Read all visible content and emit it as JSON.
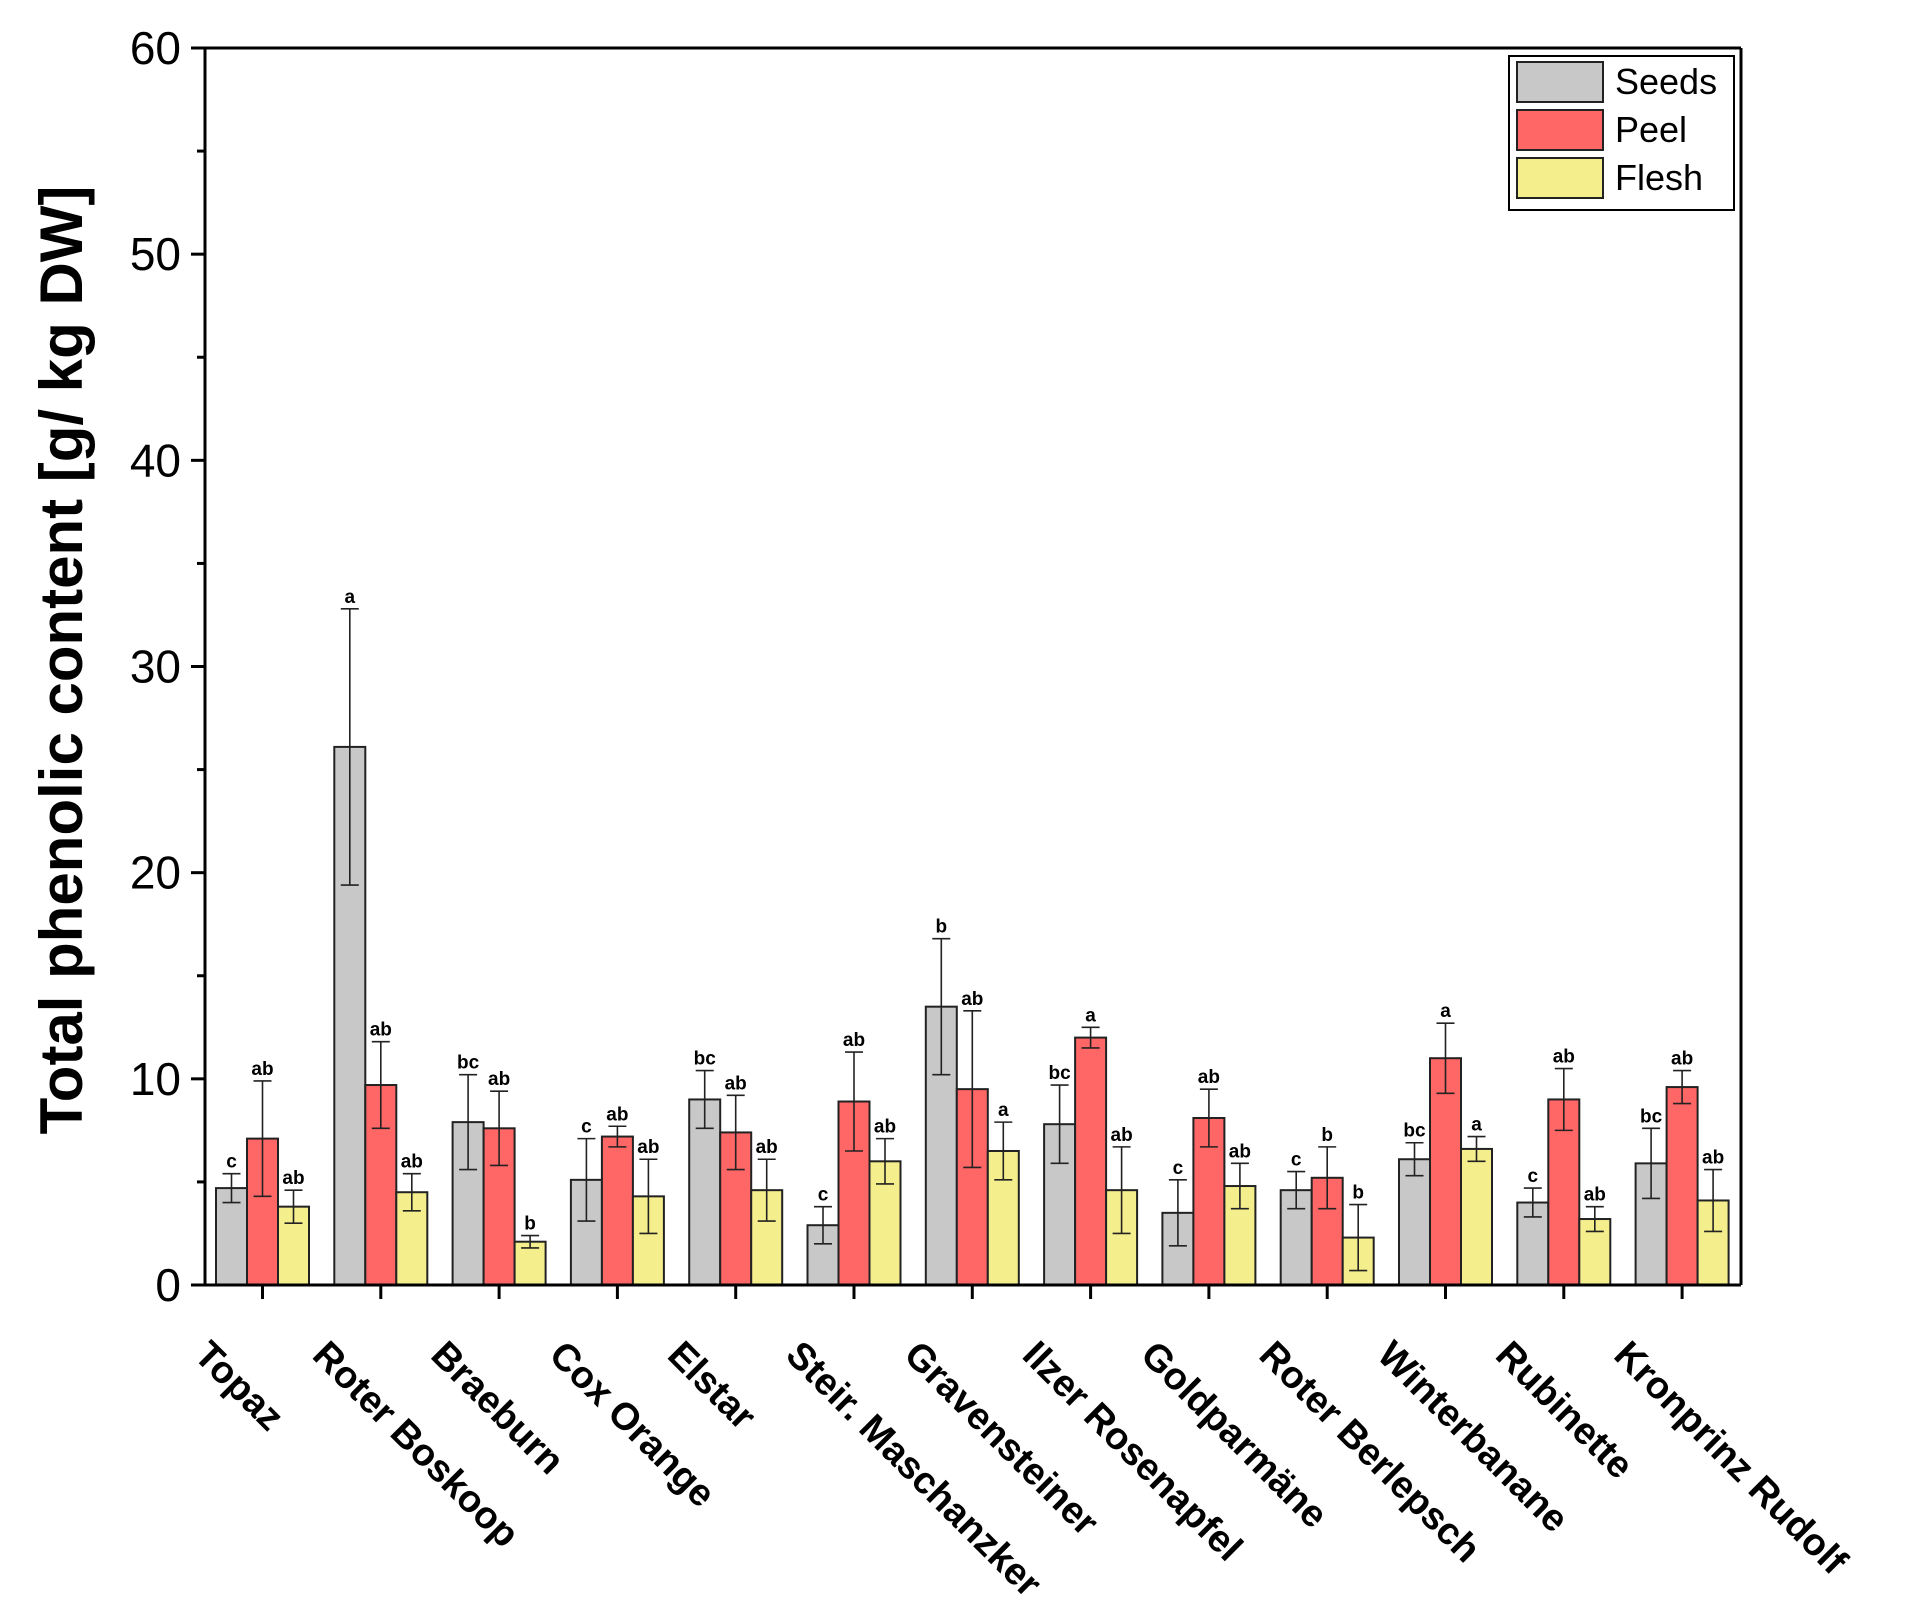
{
  "chart_data": {
    "type": "bar",
    "title": "",
    "xlabel": "",
    "ylabel": "Total phenolic content  [g/ kg DW]",
    "ylim": [
      0,
      60
    ],
    "yticks": [
      "0",
      "10",
      "20",
      "30",
      "40",
      "50",
      "60"
    ],
    "legend_position": "top-right",
    "categories": [
      "Topaz",
      "Roter Boskoop",
      "Braeburn",
      "Cox Orange",
      "Elstar",
      "Steir. Maschanzker",
      "Gravensteiner",
      "Ilzer Rosenapfel",
      "Goldparmäne",
      "Roter Berlepsch",
      "Winterbanane",
      "Rubinette",
      "Kronprinz Rudolf"
    ],
    "series": [
      {
        "name": "Seeds",
        "color": "#c8c8c8",
        "values": [
          4.7,
          26.1,
          7.9,
          5.1,
          9.0,
          2.9,
          13.5,
          7.8,
          3.5,
          4.6,
          6.1,
          4.0,
          5.9
        ],
        "errors": [
          0.7,
          6.7,
          2.3,
          2.0,
          1.4,
          0.9,
          3.3,
          1.9,
          1.6,
          0.9,
          0.8,
          0.7,
          1.7
        ],
        "letters": [
          "c",
          "a",
          "bc",
          "c",
          "bc",
          "c",
          "b",
          "bc",
          "c",
          "c",
          "bc",
          "c",
          "bc"
        ]
      },
      {
        "name": "Peel",
        "color": "#ff6666",
        "values": [
          7.1,
          9.7,
          7.6,
          7.2,
          7.4,
          8.9,
          9.5,
          12.0,
          8.1,
          5.2,
          11.0,
          9.0,
          9.6
        ],
        "errors": [
          2.8,
          2.1,
          1.8,
          0.5,
          1.8,
          2.4,
          3.8,
          0.5,
          1.4,
          1.5,
          1.7,
          1.5,
          0.8
        ],
        "letters": [
          "ab",
          "ab",
          "ab",
          "ab",
          "ab",
          "ab",
          "ab",
          "a",
          "ab",
          "b",
          "a",
          "ab",
          "ab"
        ]
      },
      {
        "name": "Flesh",
        "color": "#f5ee8c",
        "values": [
          3.8,
          4.5,
          2.1,
          4.3,
          4.6,
          6.0,
          6.5,
          4.6,
          4.8,
          2.3,
          6.6,
          3.2,
          4.1
        ],
        "errors": [
          0.8,
          0.9,
          0.3,
          1.8,
          1.5,
          1.1,
          1.4,
          2.1,
          1.1,
          1.6,
          0.6,
          0.6,
          1.5
        ],
        "letters": [
          "ab",
          "ab",
          "b",
          "ab",
          "ab",
          "ab",
          "a",
          "ab",
          "ab",
          "b",
          "a",
          "ab",
          "ab"
        ]
      }
    ]
  }
}
